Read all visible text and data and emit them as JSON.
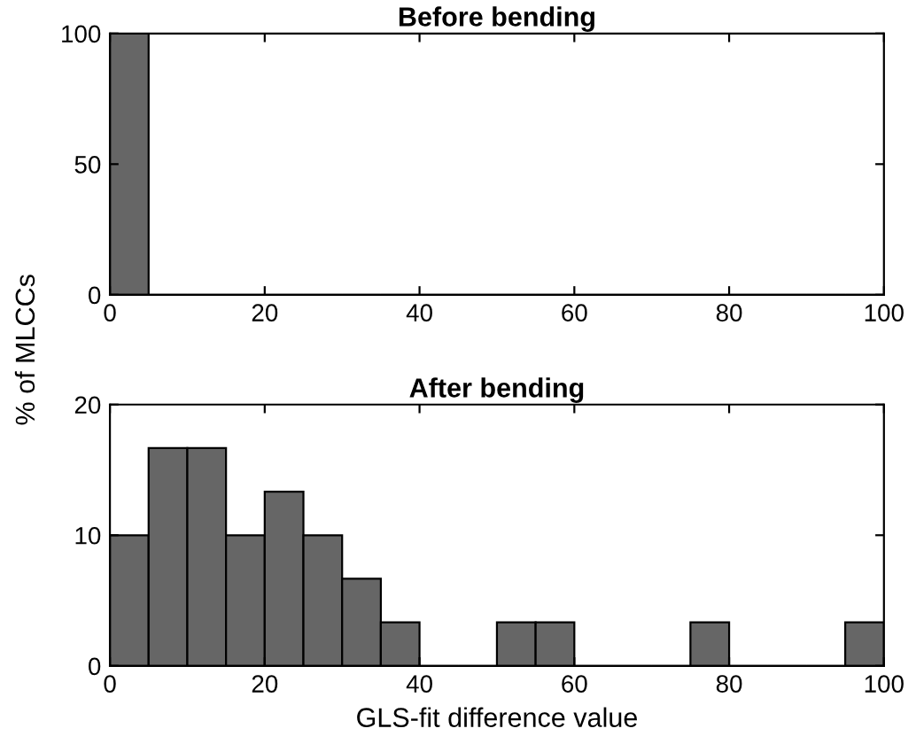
{
  "chart_data": [
    {
      "type": "histogram",
      "title": "Before bending",
      "bins": [
        0,
        5,
        10,
        15,
        20,
        25,
        30,
        35,
        40,
        45,
        50,
        55,
        60,
        65,
        70,
        75,
        80,
        85,
        90,
        95,
        100
      ],
      "values": [
        100,
        0,
        0,
        0,
        0,
        0,
        0,
        0,
        0,
        0,
        0,
        0,
        0,
        0,
        0,
        0,
        0,
        0,
        0,
        0
      ],
      "color": "#666666",
      "xlim": [
        0,
        100
      ],
      "xticks": [
        0,
        20,
        40,
        60,
        80,
        100
      ],
      "ylim": [
        0,
        100
      ],
      "yticks": [
        0,
        50,
        100
      ],
      "grid": false
    },
    {
      "type": "histogram",
      "title": "After bending",
      "xlabel": "GLS-fit difference value",
      "ylabel": "% of MLCCs",
      "bins": [
        0,
        5,
        10,
        15,
        20,
        25,
        30,
        35,
        40,
        45,
        50,
        55,
        60,
        65,
        70,
        75,
        80,
        85,
        90,
        95,
        100
      ],
      "values": [
        10,
        16.67,
        16.67,
        10,
        13.33,
        10,
        6.67,
        3.33,
        0,
        0,
        3.33,
        3.33,
        0,
        0,
        0,
        3.33,
        0,
        0,
        0,
        3.33
      ],
      "color": "#666666",
      "xlim": [
        0,
        100
      ],
      "xticks": [
        0,
        20,
        40,
        60,
        80,
        100
      ],
      "ylim": [
        0,
        20
      ],
      "yticks": [
        0,
        10,
        20
      ],
      "grid": false
    }
  ]
}
